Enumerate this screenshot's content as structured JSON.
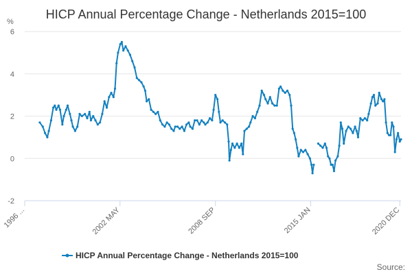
{
  "chart_data": {
    "type": "line",
    "title": "HICP Annual Percentage Change - Netherlands 2015=100",
    "ylabel": "%",
    "ylim": [
      -2,
      6
    ],
    "yticks": [
      "-2",
      "0",
      "2",
      "4",
      "6"
    ],
    "xlim": [
      1996.0,
      2021.0
    ],
    "xtick_labels": [
      {
        "label": "1996 ...",
        "x": 1996.0
      },
      {
        "label": "2002 MAY",
        "x": 2002.33
      },
      {
        "label": "2008 SEP",
        "x": 2008.67
      },
      {
        "label": "2015 JAN",
        "x": 2015.0
      },
      {
        "label": "2020 DEC",
        "x": 2020.92
      }
    ],
    "legend": "bottom-center",
    "color": "#1380bf",
    "credit": "Source:",
    "series": [
      {
        "name": "HICP Annual Percentage Change - Netherlands 2015=100",
        "segments": [
          [
            [
              1997.0,
              1.7
            ],
            [
              1997.2,
              1.5
            ],
            [
              1997.35,
              1.2
            ],
            [
              1997.5,
              1.0
            ],
            [
              1997.6,
              1.3
            ],
            [
              1997.75,
              1.8
            ],
            [
              1997.9,
              2.4
            ],
            [
              1998.0,
              2.5
            ],
            [
              1998.1,
              2.3
            ],
            [
              1998.25,
              2.5
            ],
            [
              1998.35,
              2.3
            ],
            [
              1998.5,
              1.6
            ],
            [
              1998.6,
              2.0
            ],
            [
              1998.75,
              2.3
            ],
            [
              1998.85,
              2.5
            ],
            [
              1999.0,
              2.1
            ],
            [
              1999.1,
              1.8
            ],
            [
              1999.2,
              1.5
            ],
            [
              1999.35,
              1.3
            ],
            [
              1999.5,
              1.5
            ],
            [
              1999.65,
              2.1
            ],
            [
              1999.8,
              2.0
            ],
            [
              2000.0,
              2.1
            ],
            [
              2000.15,
              1.9
            ],
            [
              2000.3,
              2.2
            ],
            [
              2000.4,
              1.8
            ],
            [
              2000.55,
              2.0
            ],
            [
              2000.7,
              1.8
            ],
            [
              2000.85,
              1.6
            ],
            [
              2001.0,
              1.7
            ],
            [
              2001.15,
              2.1
            ],
            [
              2001.3,
              2.7
            ],
            [
              2001.45,
              2.4
            ],
            [
              2001.6,
              2.9
            ],
            [
              2001.75,
              3.1
            ],
            [
              2001.9,
              2.9
            ],
            [
              2002.0,
              3.3
            ],
            [
              2002.1,
              4.5
            ],
            [
              2002.2,
              5.0
            ],
            [
              2002.35,
              5.4
            ],
            [
              2002.45,
              5.5
            ],
            [
              2002.55,
              5.1
            ],
            [
              2002.7,
              5.3
            ],
            [
              2002.85,
              5.1
            ],
            [
              2003.0,
              4.9
            ],
            [
              2003.15,
              4.6
            ],
            [
              2003.3,
              4.3
            ],
            [
              2003.45,
              3.8
            ],
            [
              2003.6,
              3.7
            ],
            [
              2003.75,
              3.6
            ],
            [
              2003.9,
              3.4
            ],
            [
              2004.0,
              3.2
            ],
            [
              2004.1,
              2.7
            ],
            [
              2004.25,
              2.8
            ],
            [
              2004.4,
              2.3
            ],
            [
              2004.55,
              2.2
            ],
            [
              2004.7,
              2.1
            ],
            [
              2004.85,
              2.2
            ],
            [
              2005.0,
              1.8
            ],
            [
              2005.15,
              1.6
            ],
            [
              2005.3,
              1.5
            ],
            [
              2005.45,
              1.7
            ],
            [
              2005.6,
              1.6
            ],
            [
              2005.75,
              1.4
            ],
            [
              2005.9,
              1.3
            ],
            [
              2006.0,
              1.5
            ],
            [
              2006.15,
              1.5
            ],
            [
              2006.3,
              1.4
            ],
            [
              2006.45,
              1.5
            ],
            [
              2006.6,
              1.3
            ],
            [
              2006.75,
              1.6
            ],
            [
              2006.9,
              1.7
            ],
            [
              2007.0,
              1.5
            ],
            [
              2007.15,
              1.4
            ],
            [
              2007.3,
              1.8
            ],
            [
              2007.45,
              1.8
            ],
            [
              2007.6,
              1.6
            ],
            [
              2007.75,
              1.8
            ],
            [
              2007.9,
              1.7
            ],
            [
              2008.0,
              1.6
            ],
            [
              2008.15,
              1.7
            ],
            [
              2008.3,
              1.9
            ],
            [
              2008.45,
              1.8
            ],
            [
              2008.55,
              2.3
            ],
            [
              2008.67,
              3.0
            ],
            [
              2008.8,
              2.8
            ],
            [
              2008.9,
              2.2
            ],
            [
              2009.0,
              1.7
            ],
            [
              2009.15,
              1.8
            ],
            [
              2009.3,
              1.7
            ],
            [
              2009.45,
              1.6
            ],
            [
              2009.55,
              0.8
            ],
            [
              2009.6,
              -0.1
            ],
            [
              2009.7,
              0.4
            ],
            [
              2009.8,
              0.7
            ],
            [
              2009.95,
              0.5
            ],
            [
              2010.1,
              0.7
            ],
            [
              2010.25,
              0.5
            ],
            [
              2010.4,
              0.7
            ],
            [
              2010.5,
              0.2
            ],
            [
              2010.6,
              1.3
            ],
            [
              2010.75,
              1.4
            ],
            [
              2010.9,
              1.5
            ],
            [
              2011.0,
              1.7
            ],
            [
              2011.15,
              2.0
            ],
            [
              2011.3,
              1.9
            ],
            [
              2011.45,
              2.2
            ],
            [
              2011.6,
              2.5
            ],
            [
              2011.75,
              3.2
            ],
            [
              2011.9,
              3.0
            ],
            [
              2012.0,
              2.8
            ],
            [
              2012.15,
              2.6
            ],
            [
              2012.3,
              2.9
            ],
            [
              2012.45,
              2.6
            ],
            [
              2012.6,
              2.5
            ],
            [
              2012.75,
              2.5
            ],
            [
              2012.9,
              3.3
            ],
            [
              2013.0,
              3.4
            ],
            [
              2013.15,
              3.2
            ],
            [
              2013.3,
              3.1
            ],
            [
              2013.45,
              3.2
            ],
            [
              2013.6,
              3.0
            ],
            [
              2013.7,
              2.5
            ],
            [
              2013.8,
              1.4
            ],
            [
              2013.9,
              1.2
            ],
            [
              2014.0,
              0.9
            ],
            [
              2014.1,
              0.5
            ],
            [
              2014.2,
              0.1
            ],
            [
              2014.35,
              0.4
            ],
            [
              2014.5,
              0.3
            ],
            [
              2014.65,
              0.4
            ],
            [
              2014.8,
              0.2
            ],
            [
              2014.95,
              0.0
            ],
            [
              2015.05,
              -0.3
            ],
            [
              2015.12,
              -0.7
            ],
            [
              2015.2,
              -0.3
            ]
          ],
          [
            [
              2015.5,
              0.7
            ],
            [
              2015.65,
              0.6
            ],
            [
              2015.8,
              0.5
            ],
            [
              2015.95,
              0.7
            ],
            [
              2016.05,
              0.5
            ],
            [
              2016.15,
              0.1
            ],
            [
              2016.25,
              0.0
            ],
            [
              2016.35,
              -0.3
            ],
            [
              2016.45,
              -0.3
            ],
            [
              2016.55,
              -0.6
            ],
            [
              2016.65,
              -0.1
            ],
            [
              2016.8,
              0.1
            ],
            [
              2016.9,
              0.6
            ],
            [
              2017.0,
              1.7
            ],
            [
              2017.1,
              1.4
            ],
            [
              2017.2,
              0.7
            ],
            [
              2017.35,
              1.3
            ],
            [
              2017.5,
              1.5
            ],
            [
              2017.65,
              1.4
            ],
            [
              2017.8,
              1.2
            ],
            [
              2017.95,
              1.5
            ],
            [
              2018.05,
              1.3
            ],
            [
              2018.15,
              1.0
            ],
            [
              2018.3,
              1.9
            ],
            [
              2018.45,
              1.8
            ],
            [
              2018.6,
              1.9
            ],
            [
              2018.75,
              1.8
            ],
            [
              2018.85,
              2.1
            ],
            [
              2019.0,
              2.6
            ],
            [
              2019.1,
              2.9
            ],
            [
              2019.2,
              3.0
            ],
            [
              2019.3,
              2.5
            ],
            [
              2019.45,
              2.6
            ],
            [
              2019.55,
              3.1
            ],
            [
              2019.7,
              2.8
            ],
            [
              2019.8,
              2.7
            ],
            [
              2019.9,
              2.8
            ],
            [
              2020.0,
              1.7
            ],
            [
              2020.1,
              1.2
            ],
            [
              2020.2,
              1.1
            ],
            [
              2020.3,
              1.1
            ],
            [
              2020.4,
              1.7
            ],
            [
              2020.5,
              1.5
            ],
            [
              2020.6,
              0.3
            ],
            [
              2020.7,
              0.9
            ],
            [
              2020.8,
              1.2
            ],
            [
              2020.92,
              0.8
            ],
            [
              2021.0,
              0.9
            ]
          ]
        ]
      }
    ]
  }
}
